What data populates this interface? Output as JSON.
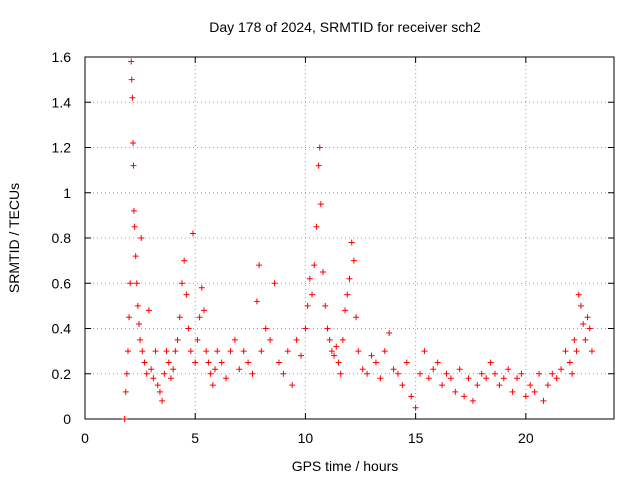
{
  "chart_data": {
    "type": "scatter",
    "title": "Day 178 of 2024, SRMTID for receiver sch2",
    "xlabel": "GPS time / hours",
    "ylabel": "SRMTID / TECUs",
    "xlim": [
      0,
      24
    ],
    "ylim": [
      0,
      1.6
    ],
    "x_ticks": [
      0,
      5,
      10,
      15,
      20
    ],
    "y_ticks": [
      0,
      0.2,
      0.4,
      0.6,
      0.8,
      1,
      1.2,
      1.4,
      1.6
    ],
    "x_tick_labels": [
      "0",
      "5",
      "10",
      "15",
      "20"
    ],
    "y_tick_labels": [
      "0",
      "0.2",
      "0.4",
      "0.6",
      "0.8",
      "1",
      "1.2",
      "1.4",
      "1.6"
    ],
    "grid": true,
    "marker": "+",
    "series": [
      {
        "name": "sch2",
        "color": "#ff0000",
        "points": [
          [
            1.8,
            0.0
          ],
          [
            1.85,
            0.12
          ],
          [
            1.9,
            0.2
          ],
          [
            1.95,
            0.3
          ],
          [
            2.0,
            0.45
          ],
          [
            2.05,
            0.6
          ],
          [
            2.1,
            1.58
          ],
          [
            2.12,
            1.5
          ],
          [
            2.15,
            1.42
          ],
          [
            2.18,
            1.22
          ],
          [
            2.2,
            1.12
          ],
          [
            2.22,
            0.92
          ],
          [
            2.25,
            0.85
          ],
          [
            2.3,
            0.72
          ],
          [
            2.35,
            0.6
          ],
          [
            2.4,
            0.5
          ],
          [
            2.45,
            0.42
          ],
          [
            2.5,
            0.35
          ],
          [
            2.55,
            0.8
          ],
          [
            2.6,
            0.3
          ],
          [
            2.7,
            0.25
          ],
          [
            2.8,
            0.2
          ],
          [
            2.9,
            0.48
          ],
          [
            3.0,
            0.22
          ],
          [
            3.1,
            0.18
          ],
          [
            3.2,
            0.3
          ],
          [
            3.3,
            0.15
          ],
          [
            3.4,
            0.12
          ],
          [
            3.5,
            0.08
          ],
          [
            3.6,
            0.2
          ],
          [
            3.7,
            0.3
          ],
          [
            3.8,
            0.25
          ],
          [
            3.9,
            0.18
          ],
          [
            4.0,
            0.22
          ],
          [
            4.1,
            0.3
          ],
          [
            4.2,
            0.35
          ],
          [
            4.3,
            0.45
          ],
          [
            4.4,
            0.6
          ],
          [
            4.5,
            0.7
          ],
          [
            4.6,
            0.55
          ],
          [
            4.7,
            0.4
          ],
          [
            4.8,
            0.3
          ],
          [
            4.9,
            0.82
          ],
          [
            5.0,
            0.25
          ],
          [
            5.1,
            0.35
          ],
          [
            5.2,
            0.45
          ],
          [
            5.3,
            0.58
          ],
          [
            5.4,
            0.48
          ],
          [
            5.5,
            0.3
          ],
          [
            5.6,
            0.25
          ],
          [
            5.7,
            0.2
          ],
          [
            5.8,
            0.15
          ],
          [
            5.9,
            0.22
          ],
          [
            6.0,
            0.3
          ],
          [
            6.2,
            0.25
          ],
          [
            6.4,
            0.18
          ],
          [
            6.6,
            0.3
          ],
          [
            6.8,
            0.35
          ],
          [
            7.0,
            0.22
          ],
          [
            7.2,
            0.3
          ],
          [
            7.4,
            0.25
          ],
          [
            7.6,
            0.2
          ],
          [
            7.8,
            0.52
          ],
          [
            7.9,
            0.68
          ],
          [
            8.0,
            0.3
          ],
          [
            8.2,
            0.4
          ],
          [
            8.4,
            0.35
          ],
          [
            8.6,
            0.6
          ],
          [
            8.8,
            0.25
          ],
          [
            9.0,
            0.2
          ],
          [
            9.2,
            0.3
          ],
          [
            9.4,
            0.15
          ],
          [
            9.6,
            0.35
          ],
          [
            9.8,
            0.28
          ],
          [
            10.0,
            0.4
          ],
          [
            10.1,
            0.5
          ],
          [
            10.2,
            0.62
          ],
          [
            10.3,
            0.55
          ],
          [
            10.4,
            0.68
          ],
          [
            10.5,
            0.85
          ],
          [
            10.6,
            1.12
          ],
          [
            10.65,
            1.2
          ],
          [
            10.7,
            0.95
          ],
          [
            10.8,
            0.65
          ],
          [
            10.9,
            0.5
          ],
          [
            11.0,
            0.4
          ],
          [
            11.1,
            0.35
          ],
          [
            11.2,
            0.3
          ],
          [
            11.3,
            0.28
          ],
          [
            11.4,
            0.32
          ],
          [
            11.5,
            0.25
          ],
          [
            11.6,
            0.2
          ],
          [
            11.7,
            0.35
          ],
          [
            11.8,
            0.48
          ],
          [
            11.9,
            0.55
          ],
          [
            12.0,
            0.62
          ],
          [
            12.1,
            0.78
          ],
          [
            12.2,
            0.7
          ],
          [
            12.3,
            0.45
          ],
          [
            12.4,
            0.3
          ],
          [
            12.6,
            0.22
          ],
          [
            12.8,
            0.2
          ],
          [
            13.0,
            0.28
          ],
          [
            13.2,
            0.25
          ],
          [
            13.4,
            0.18
          ],
          [
            13.6,
            0.3
          ],
          [
            13.8,
            0.38
          ],
          [
            14.0,
            0.22
          ],
          [
            14.2,
            0.2
          ],
          [
            14.4,
            0.15
          ],
          [
            14.6,
            0.25
          ],
          [
            14.8,
            0.1
          ],
          [
            15.0,
            0.05
          ],
          [
            15.2,
            0.2
          ],
          [
            15.4,
            0.3
          ],
          [
            15.6,
            0.18
          ],
          [
            15.8,
            0.22
          ],
          [
            16.0,
            0.25
          ],
          [
            16.2,
            0.15
          ],
          [
            16.4,
            0.2
          ],
          [
            16.6,
            0.18
          ],
          [
            16.8,
            0.12
          ],
          [
            17.0,
            0.22
          ],
          [
            17.2,
            0.1
          ],
          [
            17.4,
            0.18
          ],
          [
            17.6,
            0.08
          ],
          [
            17.8,
            0.15
          ],
          [
            18.0,
            0.2
          ],
          [
            18.2,
            0.18
          ],
          [
            18.4,
            0.25
          ],
          [
            18.6,
            0.2
          ],
          [
            18.8,
            0.15
          ],
          [
            19.0,
            0.18
          ],
          [
            19.2,
            0.22
          ],
          [
            19.4,
            0.12
          ],
          [
            19.6,
            0.18
          ],
          [
            19.8,
            0.2
          ],
          [
            20.0,
            0.1
          ],
          [
            20.2,
            0.15
          ],
          [
            20.4,
            0.12
          ],
          [
            20.6,
            0.2
          ],
          [
            20.8,
            0.08
          ],
          [
            21.0,
            0.15
          ],
          [
            21.2,
            0.2
          ],
          [
            21.4,
            0.18
          ],
          [
            21.6,
            0.22
          ],
          [
            21.8,
            0.3
          ],
          [
            22.0,
            0.25
          ],
          [
            22.1,
            0.2
          ],
          [
            22.2,
            0.35
          ],
          [
            22.3,
            0.3
          ],
          [
            22.4,
            0.55
          ],
          [
            22.5,
            0.5
          ],
          [
            22.6,
            0.42
          ],
          [
            22.7,
            0.35
          ],
          [
            22.8,
            0.45
          ],
          [
            22.9,
            0.4
          ],
          [
            23.0,
            0.3
          ]
        ]
      }
    ]
  }
}
